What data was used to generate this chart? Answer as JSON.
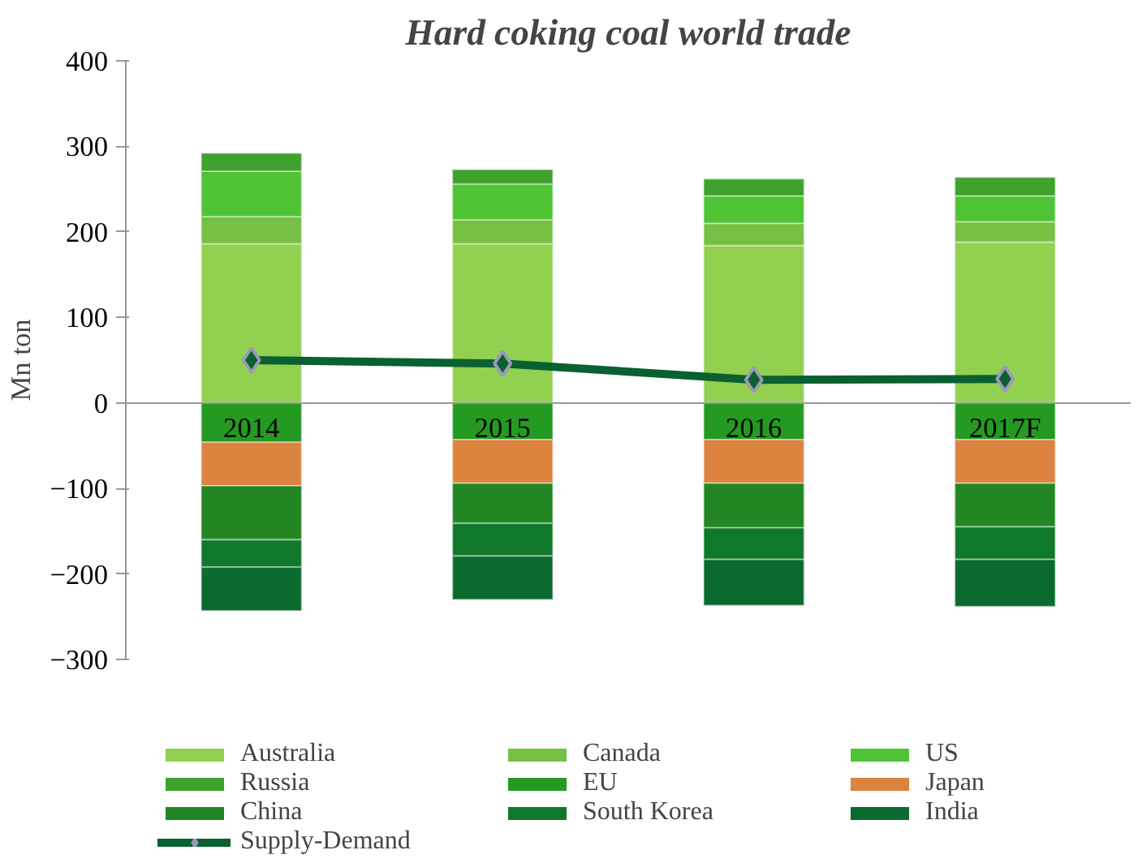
{
  "chart_data": {
    "type": "bar",
    "stacked": true,
    "title": "Hard coking coal world trade",
    "ylabel": "Mn ton",
    "categories": [
      "2014",
      "2015",
      "2016",
      "2017F"
    ],
    "ylim": [
      -300,
      400
    ],
    "yticks": [
      -300,
      -200,
      -100,
      0,
      100,
      200,
      300,
      400
    ],
    "grid": false,
    "legend": "bottom",
    "series": [
      {
        "name": "Australia",
        "color": "#92d050",
        "values": [
          186,
          186,
          184,
          188
        ]
      },
      {
        "name": "Canada",
        "color": "#76c043",
        "values": [
          32,
          28,
          26,
          24
        ]
      },
      {
        "name": "US",
        "color": "#4ec435",
        "values": [
          53,
          42,
          32,
          30
        ]
      },
      {
        "name": "Russia",
        "color": "#3ea22c",
        "values": [
          21,
          17,
          20,
          22
        ]
      },
      {
        "name": "EU",
        "color": "#259a22",
        "values": [
          -46,
          -43,
          -43,
          -43
        ]
      },
      {
        "name": "Japan",
        "color": "#dc843f",
        "values": [
          -51,
          -51,
          -51,
          -51
        ]
      },
      {
        "name": "China",
        "color": "#228622",
        "values": [
          -63,
          -47,
          -52,
          -51
        ]
      },
      {
        "name": "South Korea",
        "color": "#10782a",
        "values": [
          -32,
          -38,
          -37,
          -38
        ]
      },
      {
        "name": "India",
        "color": "#0b6a2e",
        "values": [
          -51,
          -51,
          -54,
          -55
        ]
      },
      {
        "name": "Supply-Demand",
        "type": "line",
        "marker": "diamond",
        "color": "#0a6030",
        "values": [
          50,
          46,
          27,
          28
        ]
      }
    ]
  }
}
